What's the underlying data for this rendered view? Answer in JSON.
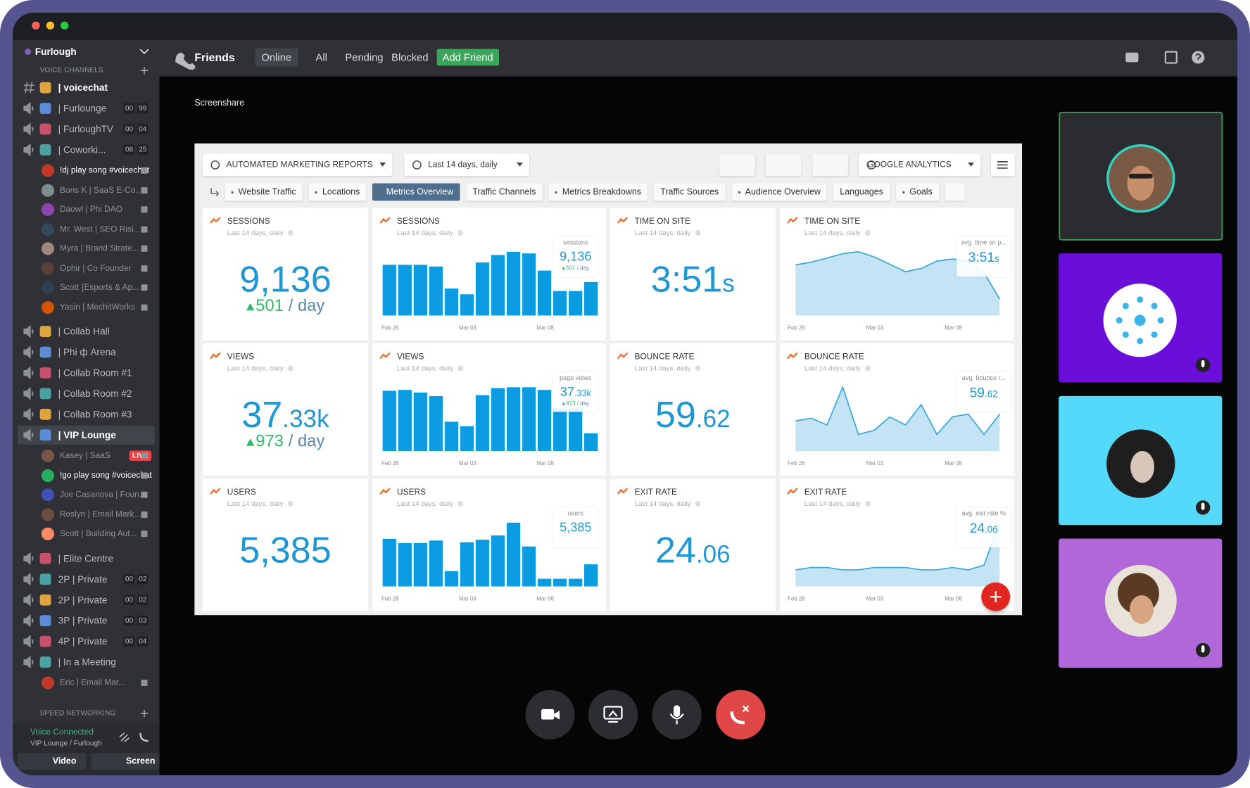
{
  "sidebar": {
    "server": "Furlough",
    "section": "VOICE CHANNELS",
    "channels": [
      {
        "name": "| voicechat",
        "kind": "text",
        "selected": true
      },
      {
        "name": "| Furlounge",
        "badges": [
          "00",
          "99"
        ]
      },
      {
        "name": "| FurloughTV",
        "badges": [
          "00",
          "04"
        ]
      },
      {
        "name": "| Coworki...",
        "badges": [
          "08",
          "25"
        ],
        "users": [
          {
            "name": "!dj play song #voicechat"
          },
          {
            "name": "Boris K | SaaS E-Co..."
          },
          {
            "name": "Daowl | Phi DAO"
          },
          {
            "name": "Mr. West | SEO Risi..."
          },
          {
            "name": "Myra | Brand Strate..."
          },
          {
            "name": "Ophir | Co Founder"
          },
          {
            "name": "Scott {Esports & Ap..."
          },
          {
            "name": "Yasin | MechitWorks"
          }
        ]
      },
      {
        "name": "| Collab Hall"
      },
      {
        "name": "| Phi ф Arena"
      },
      {
        "name": "| Collab Room #1"
      },
      {
        "name": "| Collab Room #2"
      },
      {
        "name": "| Collab Room #3"
      },
      {
        "name": "| VIP Lounge",
        "selected": true,
        "users": [
          {
            "name": "Kasey | SaaS",
            "live": "LIVE"
          },
          {
            "name": "!go play song #voicechat"
          },
          {
            "name": "Joe Casanova | Foun..."
          },
          {
            "name": "Roslyn | Email Mark..."
          },
          {
            "name": "Scott | Building Aut..."
          }
        ]
      },
      {
        "name": "| Elite Centre"
      },
      {
        "name": "2P | Private",
        "badges": [
          "00",
          "02"
        ]
      },
      {
        "name": "2P | Private",
        "badges": [
          "00",
          "02"
        ]
      },
      {
        "name": "3P | Private",
        "badges": [
          "00",
          "03"
        ]
      },
      {
        "name": "4P | Private",
        "badges": [
          "00",
          "04"
        ]
      },
      {
        "name": "| In a Meeting",
        "users": [
          {
            "name": "Eric | Email Mar..."
          }
        ]
      }
    ],
    "speed_section": "SPEED NETWORKING",
    "status": "Voice Connected",
    "location": "VIP Lounge / Furlough",
    "buttons": [
      "Video",
      "Screen"
    ]
  },
  "topbar": {
    "title": "Friends",
    "tabs": [
      "Online",
      "All",
      "Pending",
      "Blocked"
    ],
    "add": "Add Friend"
  },
  "screenshare": "Screenshare",
  "dashboard": {
    "report": "AUTOMATED MARKETING REPORTS",
    "range": "Last 14 days, daily",
    "source": "GOOGLE ANALYTICS",
    "tabs": [
      {
        "name": "Website Traffic",
        "dot": true
      },
      {
        "name": "Locations",
        "dot": true
      },
      {
        "name": "Metrics Overview",
        "dot": true,
        "active": true
      },
      {
        "name": "Traffic Channels"
      },
      {
        "name": "Metrics Breakdowns",
        "dot": true
      },
      {
        "name": "Traffic Sources"
      },
      {
        "name": "Audience Overview",
        "dot": true
      },
      {
        "name": "Languages"
      },
      {
        "name": "Goals",
        "dot": true
      }
    ],
    "widgets": [
      {
        "kind": "number",
        "title": "SESSIONS",
        "subtitle": "Last 14 days, daily",
        "value": "9,136",
        "change": "501",
        "per": "/ day"
      },
      {
        "kind": "bar",
        "title": "SESSIONS",
        "subtitle": "Last 14 days, daily",
        "tooltip": {
          "label": "sessions",
          "value": "9,136",
          "change": "501",
          "per": "/ day"
        },
        "categories": [
          "Feb 26",
          null,
          null,
          null,
          null,
          "Mar 03",
          null,
          null,
          null,
          null,
          "Mar 08",
          null,
          null,
          null
        ],
        "values": [
          620,
          620,
          620,
          600,
          330,
          260,
          650,
          740,
          780,
          760,
          550,
          300,
          300,
          410
        ]
      },
      {
        "kind": "number",
        "title": "TIME ON SITE",
        "subtitle": "Last 14 days, daily",
        "value": "3:51",
        "suffix": "s"
      },
      {
        "kind": "area",
        "title": "TIME ON SITE",
        "subtitle": "Last 14 days, daily",
        "tooltip": {
          "label": "avg. time on p...",
          "value": "3:51",
          "suffix": "s"
        },
        "categories": [
          "Feb 26",
          null,
          null,
          null,
          null,
          "Mar 03",
          null,
          null,
          null,
          null,
          "Mar 08",
          null,
          null,
          null
        ],
        "values": [
          225,
          230,
          238,
          246,
          250,
          240,
          226,
          212,
          218,
          232,
          236,
          232,
          210,
          160
        ]
      },
      {
        "kind": "number",
        "title": "VIEWS",
        "subtitle": "Last 14 days, daily",
        "value": "37",
        "suffix": ".33k",
        "change": "973",
        "per": "/ day"
      },
      {
        "kind": "bar",
        "title": "VIEWS",
        "subtitle": "Last 14 days, daily",
        "tooltip": {
          "label": "page views",
          "value": "37",
          "suffix": ".33k",
          "change": "973",
          "per": "/ day"
        },
        "categories": [
          "Feb 26",
          null,
          null,
          null,
          null,
          "Mar 03",
          null,
          null,
          null,
          null,
          "Mar 08",
          null,
          null,
          null
        ],
        "values": [
          2380,
          2415,
          2310,
          2170,
          1155,
          980,
          2205,
          2485,
          2520,
          2520,
          2415,
          1680,
          1680,
          700
        ]
      },
      {
        "kind": "number",
        "title": "BOUNCE RATE",
        "subtitle": "Last 14 days, daily",
        "value": "59",
        "suffix": ".62"
      },
      {
        "kind": "area",
        "title": "BOUNCE RATE",
        "subtitle": "Last 14 days, daily",
        "tooltip": {
          "label": "avg. bounce r...",
          "value": "59",
          "suffix": ".62"
        },
        "categories": [
          "Feb 26",
          null,
          null,
          null,
          null,
          "Mar 03",
          null,
          null,
          null,
          null,
          "Mar 08",
          null,
          null,
          null
        ],
        "values": [
          55,
          57,
          52,
          80,
          45,
          48,
          58,
          52,
          67,
          45,
          58,
          60,
          45,
          60
        ]
      },
      {
        "kind": "number",
        "title": "USERS",
        "subtitle": "Last 14 days, daily",
        "value": "5,385"
      },
      {
        "kind": "bar",
        "title": "USERS",
        "subtitle": "Last 14 days, daily",
        "tooltip": {
          "label": "users",
          "value": "5,385"
        },
        "categories": [
          "Feb 26",
          null,
          null,
          null,
          null,
          "Mar 03",
          null,
          null,
          null,
          null,
          "Mar 08",
          null,
          null,
          null
        ],
        "values": [
          280,
          255,
          255,
          270,
          90,
          260,
          275,
          300,
          375,
          235,
          45,
          45,
          45,
          130
        ]
      },
      {
        "kind": "number",
        "title": "EXIT RATE",
        "subtitle": "Last 14 days, daily",
        "value": "24",
        "suffix": ".06"
      },
      {
        "kind": "area",
        "title": "EXIT RATE",
        "subtitle": "Last 14 days, daily",
        "tooltip": {
          "label": "avg. exit rate %",
          "value": "24",
          "suffix": ".06"
        },
        "categories": [
          "Feb 26",
          null,
          null,
          null,
          null,
          "Mar 03",
          null,
          null,
          null,
          null,
          "Mar 08",
          null,
          null,
          null
        ],
        "values": [
          20,
          21,
          21,
          20,
          20,
          21,
          21,
          21,
          20,
          20,
          21,
          20,
          22,
          40
        ]
      }
    ]
  }
}
